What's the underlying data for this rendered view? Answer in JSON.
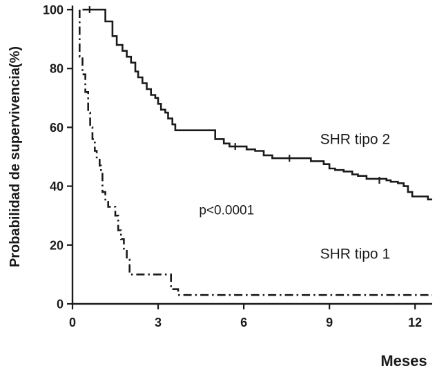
{
  "chart_data": {
    "type": "line",
    "subtype": "kaplan-meier-step-survival",
    "title": "",
    "xlabel": "Meses",
    "ylabel": "Probabilidad de supervivencia(%)",
    "xlim": [
      0,
      12.6
    ],
    "ylim": [
      0,
      100
    ],
    "xticks": [
      0,
      3,
      6,
      9,
      12
    ],
    "yticks": [
      0,
      20,
      40,
      60,
      80,
      100
    ],
    "grid": false,
    "legend_position": "inline-labels",
    "annotations": [
      {
        "id": "p-value",
        "text": "p<0.0001",
        "x": 5.4,
        "y": 32,
        "size": 19,
        "weight": "normal"
      },
      {
        "id": "label-shr-tipo-2",
        "text": "SHR tipo 2",
        "x": 9.9,
        "y": 56,
        "size": 21,
        "weight": "normal"
      },
      {
        "id": "label-shr-tipo-1",
        "text": "SHR tipo 1",
        "x": 9.9,
        "y": 17,
        "size": 21,
        "weight": "normal"
      }
    ],
    "series": [
      {
        "name": "SHR tipo 2",
        "line_style": "solid",
        "color": "#1a1a1a",
        "step_points": [
          [
            0.35,
            100
          ],
          [
            1.1,
            100
          ],
          [
            1.15,
            96
          ],
          [
            1.4,
            91
          ],
          [
            1.55,
            88
          ],
          [
            1.75,
            86
          ],
          [
            1.9,
            84
          ],
          [
            2.05,
            82
          ],
          [
            2.2,
            79
          ],
          [
            2.3,
            77
          ],
          [
            2.45,
            75
          ],
          [
            2.6,
            73
          ],
          [
            2.75,
            71
          ],
          [
            2.9,
            70
          ],
          [
            3.0,
            68
          ],
          [
            3.1,
            66
          ],
          [
            3.25,
            65
          ],
          [
            3.35,
            63
          ],
          [
            3.5,
            61
          ],
          [
            3.6,
            59
          ],
          [
            5.0,
            56
          ],
          [
            5.3,
            54.5
          ],
          [
            5.5,
            53.5
          ],
          [
            6.1,
            52.5
          ],
          [
            6.4,
            52
          ],
          [
            6.7,
            50.5
          ],
          [
            7.0,
            49.5
          ],
          [
            8.35,
            48.5
          ],
          [
            8.8,
            47.5
          ],
          [
            9.0,
            46
          ],
          [
            9.2,
            45.5
          ],
          [
            9.5,
            45
          ],
          [
            9.8,
            44
          ],
          [
            10.0,
            43.5
          ],
          [
            10.3,
            42.5
          ],
          [
            11.0,
            42
          ],
          [
            11.15,
            41.5
          ],
          [
            11.4,
            41
          ],
          [
            11.6,
            40
          ],
          [
            11.75,
            38
          ],
          [
            11.9,
            36.5
          ],
          [
            12.45,
            35.5
          ],
          [
            12.6,
            35.5
          ]
        ],
        "censor_marks": [
          [
            0.6,
            100
          ],
          [
            5.7,
            53.5
          ],
          [
            7.6,
            49.5
          ],
          [
            10.75,
            42
          ]
        ]
      },
      {
        "name": "SHR tipo 1",
        "line_style": "dash-dot",
        "color": "#1a1a1a",
        "step_points": [
          [
            0.25,
            100
          ],
          [
            0.25,
            84
          ],
          [
            0.35,
            78
          ],
          [
            0.45,
            72
          ],
          [
            0.55,
            65
          ],
          [
            0.62,
            60
          ],
          [
            0.7,
            56
          ],
          [
            0.78,
            52
          ],
          [
            0.85,
            49
          ],
          [
            0.95,
            47
          ],
          [
            1.0,
            45
          ],
          [
            1.05,
            38
          ],
          [
            1.15,
            35
          ],
          [
            1.25,
            33
          ],
          [
            1.5,
            30
          ],
          [
            1.6,
            25
          ],
          [
            1.7,
            22
          ],
          [
            1.8,
            18
          ],
          [
            1.9,
            15
          ],
          [
            2.0,
            10
          ],
          [
            3.3,
            10
          ],
          [
            3.45,
            5
          ],
          [
            3.7,
            3
          ],
          [
            12.6,
            3
          ]
        ],
        "censor_marks": []
      }
    ]
  },
  "styles": {
    "background": "#ffffff",
    "axis_color": "#1a1a1a",
    "text_color": "#1a1a1a",
    "tick_label_size": 18,
    "axis_label_size": 20,
    "xlabel_size": 22
  }
}
